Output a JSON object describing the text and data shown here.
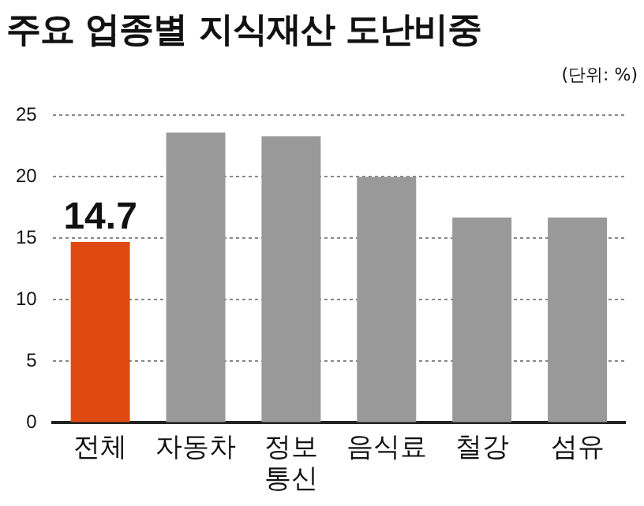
{
  "chart_data": {
    "type": "bar",
    "title": "주요 업종별 지식재산 도난비중",
    "annotations": [
      "(단위: %)"
    ],
    "categories": [
      "전체",
      "자동차",
      "정보 통신",
      "음식료",
      "철강",
      "섬유"
    ],
    "values": [
      14.7,
      23.6,
      23.3,
      20,
      16.7,
      16.7
    ],
    "colors": [
      "#e04a12",
      "#999999",
      "#999999",
      "#999999",
      "#999999",
      "#999999"
    ],
    "value_labels": [
      "14.7",
      null,
      null,
      null,
      null,
      null
    ],
    "ylim": [
      0,
      25
    ],
    "yticks": [
      0,
      5,
      10,
      15,
      20,
      25
    ],
    "grid": "y",
    "legend": false
  }
}
